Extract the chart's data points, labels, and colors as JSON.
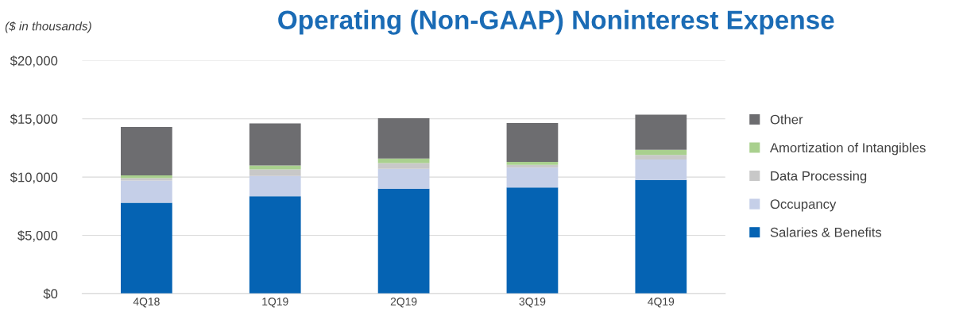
{
  "chart_data": {
    "type": "bar",
    "title": "Operating (Non-GAAP) Noninterest Expense",
    "annotations": [
      "($ in thousands)"
    ],
    "categories": [
      "4Q18",
      "1Q19",
      "2Q19",
      "3Q19",
      "4Q19"
    ],
    "stacked": true,
    "series": [
      {
        "name": "Salaries & Benefits",
        "color": "#0563b3",
        "values": [
          7800,
          8350,
          9000,
          9100,
          9750
        ]
      },
      {
        "name": "Occupancy",
        "color": "#c5cfe8",
        "values": [
          1900,
          1750,
          1700,
          1700,
          1750
        ]
      },
      {
        "name": "Data Processing",
        "color": "#c8c8c8",
        "values": [
          200,
          550,
          500,
          250,
          400
        ]
      },
      {
        "name": "Amortization of Intangibles",
        "color": "#a9d08e",
        "values": [
          250,
          350,
          400,
          250,
          450
        ]
      },
      {
        "name": "Other",
        "color": "#6d6d70",
        "values": [
          4150,
          3600,
          3450,
          3350,
          3000
        ]
      }
    ],
    "ylim": [
      0,
      20000
    ],
    "yticks": [
      {
        "value": 0,
        "label": "$0"
      },
      {
        "value": 5000,
        "label": "$5,000"
      },
      {
        "value": 10000,
        "label": "$10,000"
      },
      {
        "value": 15000,
        "label": "$15,000"
      },
      {
        "value": 20000,
        "label": "$20,000"
      }
    ],
    "grid": "y",
    "legend": "right"
  }
}
